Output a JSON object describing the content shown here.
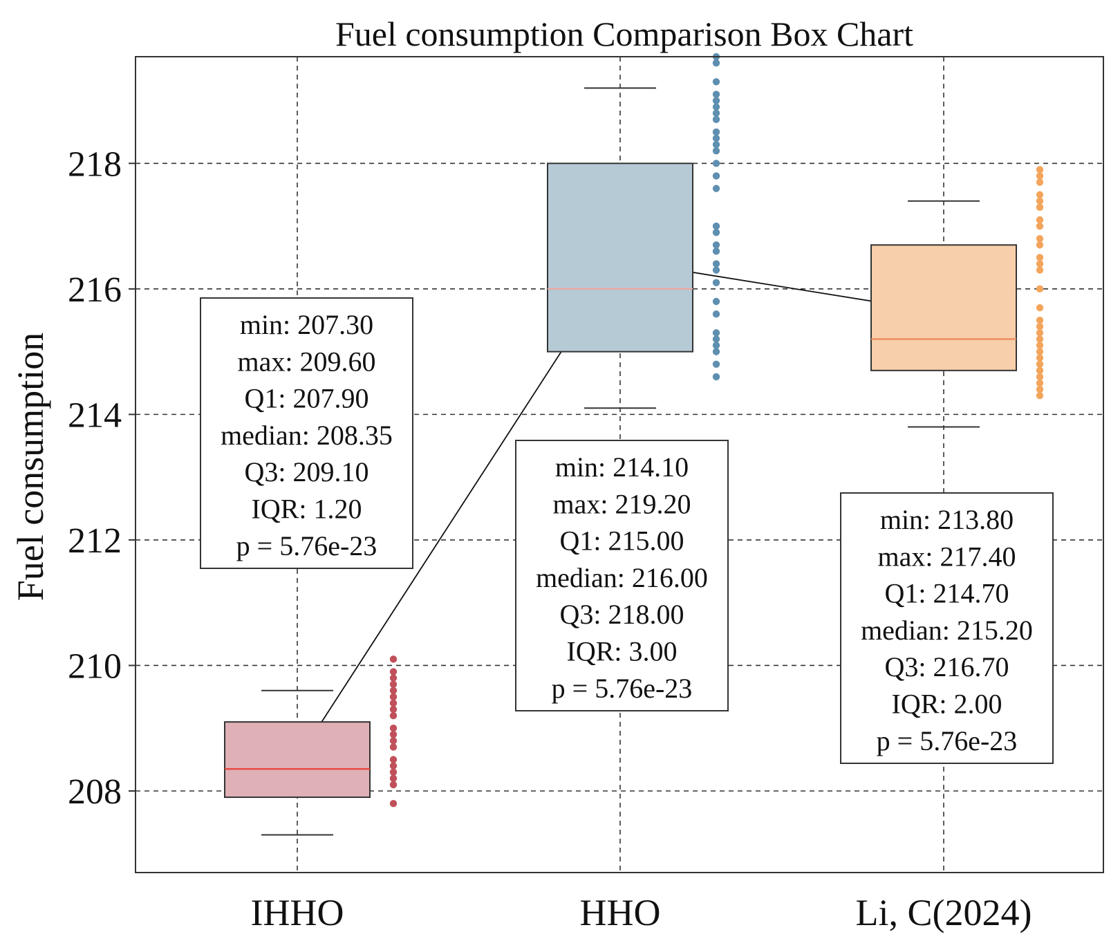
{
  "chart_data": {
    "type": "box",
    "title": "Fuel consumption Comparison Box Chart",
    "xlabel": "",
    "ylabel": "Fuel consumption",
    "ylim": [
      206.7,
      219.7
    ],
    "yticks": [
      208,
      210,
      212,
      214,
      216,
      218
    ],
    "ytick_labels": [
      "208",
      "210",
      "212",
      "214",
      "216",
      "218"
    ],
    "grid": true,
    "categories": [
      "IHHO",
      "HHO",
      "Li, C(2024)"
    ],
    "series": [
      {
        "name": "IHHO",
        "color": "#c0505a",
        "fill": "#dfb0b6",
        "median_color": "#e8463c",
        "min": 207.3,
        "max": 209.6,
        "q1": 207.9,
        "median": 208.35,
        "q3": 209.1,
        "mean": 208.5,
        "points": [
          207.8,
          208.1,
          208.2,
          208.3,
          208.4,
          208.5,
          208.7,
          208.8,
          208.9,
          209.0,
          209.2,
          209.3,
          209.4,
          209.5,
          209.6,
          209.7,
          209.8,
          209.9,
          210.1
        ],
        "stats_lines": [
          "min: 207.30",
          "max: 209.60",
          "Q1: 207.90",
          "median: 208.35",
          "Q3: 209.10",
          "IQR: 1.20",
          "p = 5.76e-23"
        ]
      },
      {
        "name": "HHO",
        "color": "#5f8fb0",
        "fill": "#b6cad6",
        "median_color": "#e9a8a0",
        "min": 214.1,
        "max": 219.2,
        "q1": 215.0,
        "median": 216.0,
        "q3": 218.0,
        "mean": 216.45,
        "points": [
          214.6,
          214.8,
          215.0,
          215.1,
          215.2,
          215.3,
          215.6,
          215.8,
          216.1,
          216.3,
          216.4,
          216.6,
          216.7,
          216.9,
          217.0,
          217.6,
          217.8,
          218.0,
          218.2,
          218.3,
          218.4,
          218.5,
          218.7,
          218.8,
          218.9,
          219.0,
          219.1,
          219.3,
          219.6,
          219.7
        ],
        "stats_lines": [
          "min: 214.10",
          "max: 219.20",
          "Q1: 215.00",
          "median: 216.00",
          "Q3: 218.00",
          "IQR: 3.00",
          "p = 5.76e-23"
        ]
      },
      {
        "name": "Li, C(2024)",
        "color": "#f3a55c",
        "fill": "#f7cfaa",
        "median_color": "#ef8a5e",
        "min": 213.8,
        "max": 217.4,
        "q1": 214.7,
        "median": 215.2,
        "q3": 216.7,
        "mean": 215.62,
        "points": [
          214.3,
          214.4,
          214.5,
          214.6,
          214.7,
          214.8,
          214.9,
          215.0,
          215.1,
          215.2,
          215.3,
          215.4,
          215.5,
          215.7,
          216.0,
          216.3,
          216.4,
          216.5,
          216.7,
          216.8,
          217.0,
          217.1,
          217.3,
          217.4,
          217.5,
          217.7,
          217.8,
          217.9
        ],
        "stats_lines": [
          "min: 213.80",
          "max: 217.40",
          "Q1: 214.70",
          "median: 215.20",
          "Q3: 216.70",
          "IQR: 2.00",
          "p = 5.76e-23"
        ]
      }
    ],
    "mean_line": true
  }
}
